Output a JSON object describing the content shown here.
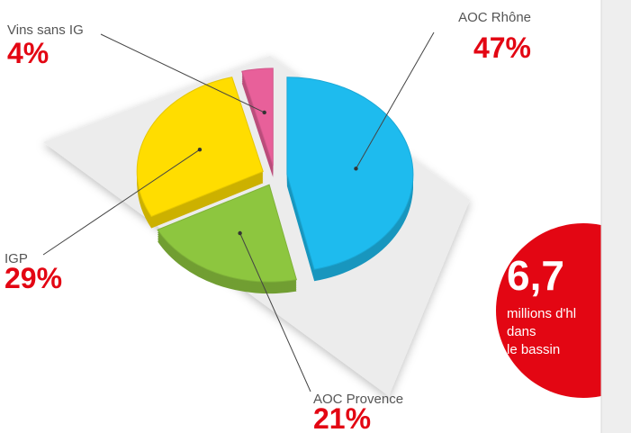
{
  "chart_data": {
    "type": "pie",
    "categories": [
      "AOC Rhône",
      "AOC Provence",
      "IGP",
      "Vins sans IG"
    ],
    "values": [
      47,
      21,
      29,
      4
    ],
    "value_labels": [
      "47%",
      "21%",
      "29%",
      "4%"
    ],
    "colors": [
      "#1ebbee",
      "#8dc63f",
      "#ffdd00",
      "#e8609a"
    ],
    "annotation": {
      "value": "6,7",
      "lines": [
        "millions d'hl",
        "dans",
        "le bassin"
      ]
    }
  }
}
